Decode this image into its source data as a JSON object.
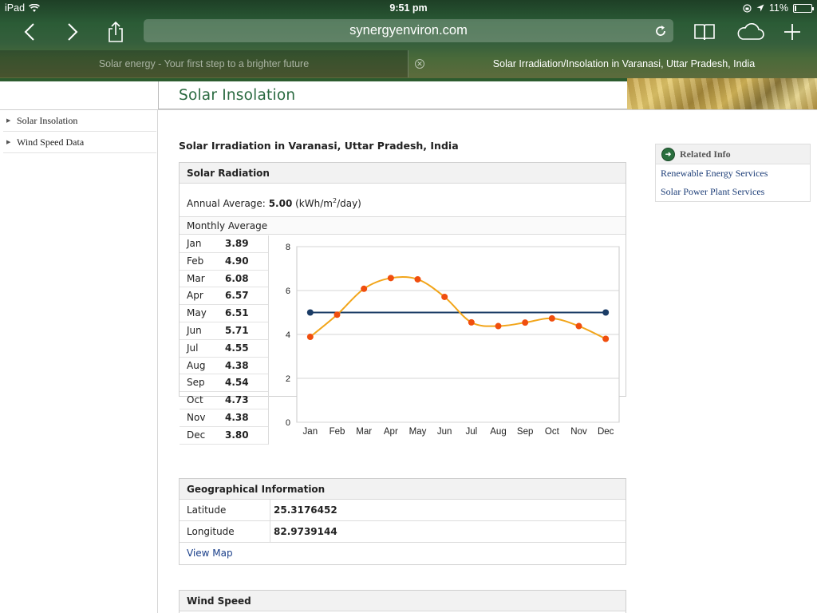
{
  "status_bar": {
    "device": "iPad",
    "time": "9:51 pm",
    "battery": "11%",
    "battery_level": 0.11
  },
  "browser": {
    "url": "synergyenviron.com",
    "tabs": [
      {
        "title": "Solar energy - Your first step to a brighter future",
        "active": false
      },
      {
        "title": "Solar Irradiation/Insolation in Varanasi, Uttar Pradesh, India",
        "active": true
      }
    ]
  },
  "page": {
    "section_title": "Solar Insolation",
    "sidebar": [
      {
        "label": "Solar Insolation"
      },
      {
        "label": "Wind Speed Data"
      }
    ],
    "heading": "Solar Irradiation in Varanasi, Uttar Pradesh, India",
    "solar_radiation": {
      "title": "Solar Radiation",
      "annual_label": "Annual Average:",
      "annual_value": "5.00",
      "annual_unit_pre": "(kWh/m",
      "annual_unit_sup": "2",
      "annual_unit_post": "/day)",
      "monthly_label": "Monthly Average",
      "months": [
        {
          "month": "Jan",
          "value": "3.89"
        },
        {
          "month": "Feb",
          "value": "4.90"
        },
        {
          "month": "Mar",
          "value": "6.08"
        },
        {
          "month": "Apr",
          "value": "6.57"
        },
        {
          "month": "May",
          "value": "6.51"
        },
        {
          "month": "Jun",
          "value": "5.71"
        },
        {
          "month": "Jul",
          "value": "4.55"
        },
        {
          "month": "Aug",
          "value": "4.38"
        },
        {
          "month": "Sep",
          "value": "4.54"
        },
        {
          "month": "Oct",
          "value": "4.73"
        },
        {
          "month": "Nov",
          "value": "4.38"
        },
        {
          "month": "Dec",
          "value": "3.80"
        }
      ]
    },
    "geography": {
      "title": "Geographical Information",
      "latitude_label": "Latitude",
      "latitude": "25.3176452",
      "longitude_label": "Longitude",
      "longitude": "82.9739144",
      "view_map": "View Map"
    },
    "wind_speed": {
      "title": "Wind Speed"
    },
    "related": {
      "title": "Related Info",
      "links": [
        "Renewable Energy Services",
        "Solar Power Plant Services"
      ]
    }
  },
  "colors": {
    "monthly_line": "#f2a51a",
    "monthly_points": "#f04e0e",
    "annual_line": "#1b3c66",
    "title_green": "#2a6a40"
  },
  "chart_data": {
    "type": "line",
    "categories": [
      "Jan",
      "Feb",
      "Mar",
      "Apr",
      "May",
      "Jun",
      "Jul",
      "Aug",
      "Sep",
      "Oct",
      "Nov",
      "Dec"
    ],
    "series": [
      {
        "values": [
          3.89,
          4.9,
          6.08,
          6.57,
          6.51,
          5.71,
          4.55,
          4.38,
          4.54,
          4.73,
          4.38,
          3.8
        ]
      },
      {
        "values": [
          5.0,
          5.0,
          5.0,
          5.0,
          5.0,
          5.0,
          5.0,
          5.0,
          5.0,
          5.0,
          5.0,
          5.0
        ]
      }
    ],
    "ylim": [
      0,
      8
    ],
    "yticks": [
      0,
      2,
      4,
      6,
      8
    ],
    "grid": true
  }
}
